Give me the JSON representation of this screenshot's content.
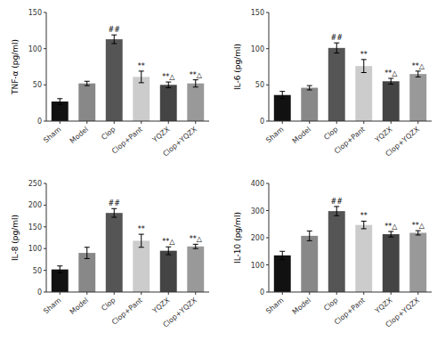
{
  "chart_data": [
    {
      "type": "bar",
      "y_label": "TNF-α (pg/ml)",
      "ylim": [
        0,
        150
      ],
      "yticks": [
        0,
        50,
        100,
        150
      ],
      "grid": false,
      "categories": [
        "Sham",
        "Model",
        "Clop",
        "Clop+Pant",
        "YQZX",
        "Clop+YQZX"
      ],
      "values": [
        27,
        52,
        113,
        61,
        50,
        52
      ],
      "errors": [
        4,
        3,
        6,
        8,
        4,
        5
      ],
      "colors": [
        "#111111",
        "#888888",
        "#555555",
        "#cccccc",
        "#444444",
        "#999999"
      ],
      "annotations": [
        {
          "bar": 2,
          "text": "##"
        },
        {
          "bar": 3,
          "text": "**"
        },
        {
          "bar": 4,
          "text": "**△"
        },
        {
          "bar": 5,
          "text": "**△"
        }
      ]
    },
    {
      "type": "bar",
      "y_label": "IL-6 (pg/ml)",
      "ylim": [
        0,
        150
      ],
      "yticks": [
        0,
        50,
        100,
        150
      ],
      "grid": false,
      "categories": [
        "Sham",
        "Model",
        "Clop",
        "Clop+Pant",
        "YQZX",
        "Clop+YQZX"
      ],
      "values": [
        36,
        46,
        101,
        76,
        55,
        65
      ],
      "errors": [
        5,
        3,
        7,
        9,
        4,
        4
      ],
      "colors": [
        "#111111",
        "#888888",
        "#555555",
        "#cccccc",
        "#444444",
        "#999999"
      ],
      "annotations": [
        {
          "bar": 2,
          "text": "##"
        },
        {
          "bar": 3,
          "text": "**"
        },
        {
          "bar": 4,
          "text": "**△"
        },
        {
          "bar": 5,
          "text": "**△"
        }
      ]
    },
    {
      "type": "bar",
      "y_label": "IL-8 (pg/ml)",
      "ylim": [
        0,
        250
      ],
      "yticks": [
        0,
        50,
        100,
        150,
        200,
        250
      ],
      "grid": false,
      "categories": [
        "Sham",
        "Model",
        "Clop",
        "Clop+Pant",
        "YQZX",
        "Clop+YQZX"
      ],
      "values": [
        52,
        90,
        182,
        118,
        95,
        105
      ],
      "errors": [
        8,
        13,
        10,
        15,
        9,
        5
      ],
      "colors": [
        "#111111",
        "#888888",
        "#555555",
        "#cccccc",
        "#444444",
        "#999999"
      ],
      "annotations": [
        {
          "bar": 2,
          "text": "##"
        },
        {
          "bar": 3,
          "text": "**"
        },
        {
          "bar": 4,
          "text": "**△"
        },
        {
          "bar": 5,
          "text": "**△"
        }
      ]
    },
    {
      "type": "bar",
      "y_label": "IL-10 (pg/ml)",
      "ylim": [
        0,
        400
      ],
      "yticks": [
        0,
        100,
        200,
        300,
        400
      ],
      "grid": false,
      "categories": [
        "Sham",
        "Model",
        "Clop",
        "Clop+Pant",
        "YQZX",
        "Clop+YQZX"
      ],
      "values": [
        135,
        207,
        298,
        247,
        213,
        218
      ],
      "errors": [
        15,
        18,
        17,
        14,
        10,
        8
      ],
      "colors": [
        "#111111",
        "#888888",
        "#555555",
        "#cccccc",
        "#444444",
        "#999999"
      ],
      "annotations": [
        {
          "bar": 2,
          "text": "##"
        },
        {
          "bar": 3,
          "text": "**"
        },
        {
          "bar": 4,
          "text": "**△"
        },
        {
          "bar": 5,
          "text": "**△"
        }
      ]
    }
  ]
}
